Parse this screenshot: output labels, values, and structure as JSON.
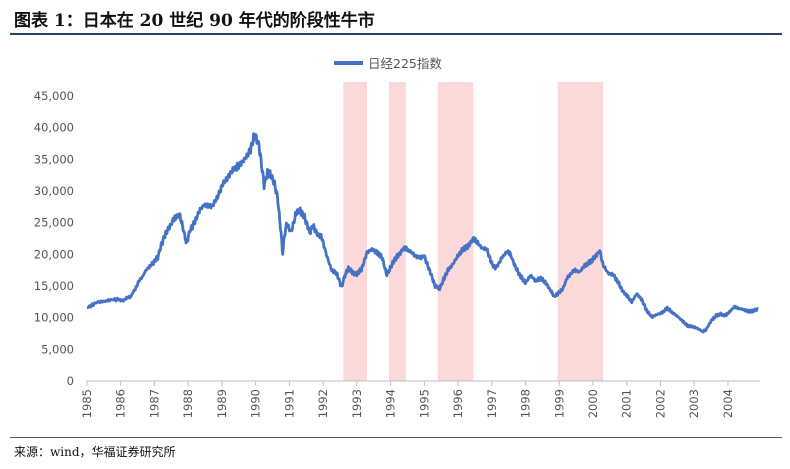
{
  "header": {
    "title": "图表 1：日本在 20 世纪 90 年代的阶段性牛市"
  },
  "footer": {
    "source": "来源：wind，华福证券研究所"
  },
  "chart_data": {
    "type": "line",
    "title": "图表 1：日本在 20 世纪 90 年代的阶段性牛市",
    "xlabel": "",
    "ylabel": "",
    "xlim": [
      1985.0,
      2004.95
    ],
    "ylim": [
      0,
      45000
    ],
    "grid": false,
    "legend_position": "top-center",
    "x_tick_labels": [
      "1985",
      "1986",
      "1987",
      "1988",
      "1989",
      "1990",
      "1991",
      "1992",
      "1993",
      "1994",
      "1995",
      "1996",
      "1997",
      "1998",
      "1999",
      "2000",
      "2001",
      "2002",
      "2003",
      "2004"
    ],
    "y_tick_labels": [
      "0",
      "5,000",
      "10,000",
      "15,000",
      "20,000",
      "25,000",
      "30,000",
      "35,000",
      "40,000",
      "45,000"
    ],
    "y_ticks": [
      0,
      5000,
      10000,
      15000,
      20000,
      25000,
      30000,
      35000,
      40000,
      45000
    ],
    "series": [
      {
        "name": "日经225指数",
        "color": "#4472c4",
        "points": [
          [
            1985.0,
            11600
          ],
          [
            1985.3,
            12400
          ],
          [
            1985.6,
            12700
          ],
          [
            1985.9,
            12900
          ],
          [
            1986.1,
            12800
          ],
          [
            1986.3,
            13300
          ],
          [
            1986.55,
            15800
          ],
          [
            1986.8,
            17800
          ],
          [
            1986.95,
            18600
          ],
          [
            1987.1,
            19500
          ],
          [
            1987.2,
            21500
          ],
          [
            1987.35,
            23500
          ],
          [
            1987.5,
            24800
          ],
          [
            1987.6,
            25800
          ],
          [
            1987.75,
            26300
          ],
          [
            1987.85,
            24000
          ],
          [
            1987.95,
            21600
          ],
          [
            1988.05,
            23800
          ],
          [
            1988.2,
            25200
          ],
          [
            1988.35,
            27100
          ],
          [
            1988.5,
            27900
          ],
          [
            1988.7,
            27400
          ],
          [
            1988.9,
            29500
          ],
          [
            1989.0,
            30800
          ],
          [
            1989.2,
            32500
          ],
          [
            1989.4,
            33500
          ],
          [
            1989.55,
            34200
          ],
          [
            1989.7,
            35200
          ],
          [
            1989.85,
            36600
          ],
          [
            1989.97,
            38900
          ],
          [
            1990.1,
            37200
          ],
          [
            1990.25,
            31000
          ],
          [
            1990.35,
            33000
          ],
          [
            1990.45,
            32500
          ],
          [
            1990.55,
            31200
          ],
          [
            1990.65,
            29000
          ],
          [
            1990.75,
            23500
          ],
          [
            1990.8,
            20200
          ],
          [
            1990.85,
            22800
          ],
          [
            1990.92,
            24800
          ],
          [
            1991.05,
            23500
          ],
          [
            1991.2,
            26500
          ],
          [
            1991.3,
            27100
          ],
          [
            1991.45,
            25800
          ],
          [
            1991.6,
            23500
          ],
          [
            1991.7,
            24500
          ],
          [
            1991.85,
            23000
          ],
          [
            1991.95,
            22800
          ],
          [
            1992.1,
            19900
          ],
          [
            1992.25,
            17500
          ],
          [
            1992.4,
            17000
          ],
          [
            1992.55,
            14800
          ],
          [
            1992.63,
            16500
          ],
          [
            1992.75,
            17800
          ],
          [
            1992.9,
            17000
          ],
          [
            1993.0,
            16900
          ],
          [
            1993.15,
            17800
          ],
          [
            1993.3,
            20300
          ],
          [
            1993.45,
            20800
          ],
          [
            1993.6,
            20300
          ],
          [
            1993.75,
            19500
          ],
          [
            1993.88,
            16800
          ],
          [
            1993.95,
            17400
          ],
          [
            1994.1,
            19000
          ],
          [
            1994.25,
            20000
          ],
          [
            1994.4,
            21000
          ],
          [
            1994.5,
            20700
          ],
          [
            1994.65,
            20200
          ],
          [
            1994.85,
            19500
          ],
          [
            1995.0,
            19700
          ],
          [
            1995.1,
            18300
          ],
          [
            1995.2,
            16800
          ],
          [
            1995.32,
            15000
          ],
          [
            1995.45,
            14600
          ],
          [
            1995.55,
            15800
          ],
          [
            1995.7,
            17500
          ],
          [
            1995.85,
            18500
          ],
          [
            1996.0,
            19800
          ],
          [
            1996.15,
            20800
          ],
          [
            1996.3,
            21300
          ],
          [
            1996.45,
            22500
          ],
          [
            1996.55,
            22000
          ],
          [
            1996.7,
            21000
          ],
          [
            1996.85,
            20800
          ],
          [
            1997.0,
            18500
          ],
          [
            1997.1,
            17800
          ],
          [
            1997.3,
            19500
          ],
          [
            1997.45,
            20400
          ],
          [
            1997.55,
            20000
          ],
          [
            1997.7,
            18000
          ],
          [
            1997.85,
            16500
          ],
          [
            1998.0,
            15500
          ],
          [
            1998.15,
            16700
          ],
          [
            1998.3,
            15800
          ],
          [
            1998.45,
            16200
          ],
          [
            1998.6,
            15500
          ],
          [
            1998.75,
            14200
          ],
          [
            1998.85,
            13300
          ],
          [
            1998.95,
            13800
          ],
          [
            1999.1,
            14500
          ],
          [
            1999.25,
            16500
          ],
          [
            1999.45,
            17500
          ],
          [
            1999.6,
            17200
          ],
          [
            1999.75,
            18200
          ],
          [
            1999.9,
            18700
          ],
          [
            2000.05,
            19500
          ],
          [
            2000.2,
            20600
          ],
          [
            2000.3,
            18300
          ],
          [
            2000.45,
            17000
          ],
          [
            2000.6,
            16800
          ],
          [
            2000.75,
            15500
          ],
          [
            2000.9,
            14000
          ],
          [
            2001.0,
            13500
          ],
          [
            2001.15,
            12500
          ],
          [
            2001.3,
            13800
          ],
          [
            2001.45,
            12800
          ],
          [
            2001.6,
            11000
          ],
          [
            2001.75,
            10100
          ],
          [
            2001.9,
            10500
          ],
          [
            2002.05,
            10800
          ],
          [
            2002.2,
            11500
          ],
          [
            2002.35,
            10800
          ],
          [
            2002.5,
            10200
          ],
          [
            2002.65,
            9500
          ],
          [
            2002.8,
            8700
          ],
          [
            2002.95,
            8600
          ],
          [
            2003.1,
            8300
          ],
          [
            2003.25,
            7800
          ],
          [
            2003.35,
            8100
          ],
          [
            2003.5,
            9500
          ],
          [
            2003.65,
            10300
          ],
          [
            2003.8,
            10600
          ],
          [
            2003.9,
            10300
          ],
          [
            2004.05,
            10900
          ],
          [
            2004.2,
            11800
          ],
          [
            2004.3,
            11500
          ],
          [
            2004.45,
            11300
          ],
          [
            2004.6,
            11000
          ],
          [
            2004.75,
            11100
          ],
          [
            2004.9,
            11400
          ]
        ]
      }
    ],
    "highlight_periods": [
      [
        1992.6,
        1993.3
      ],
      [
        1993.95,
        1994.45
      ],
      [
        1995.4,
        1996.45
      ],
      [
        1998.95,
        2000.3
      ]
    ]
  }
}
